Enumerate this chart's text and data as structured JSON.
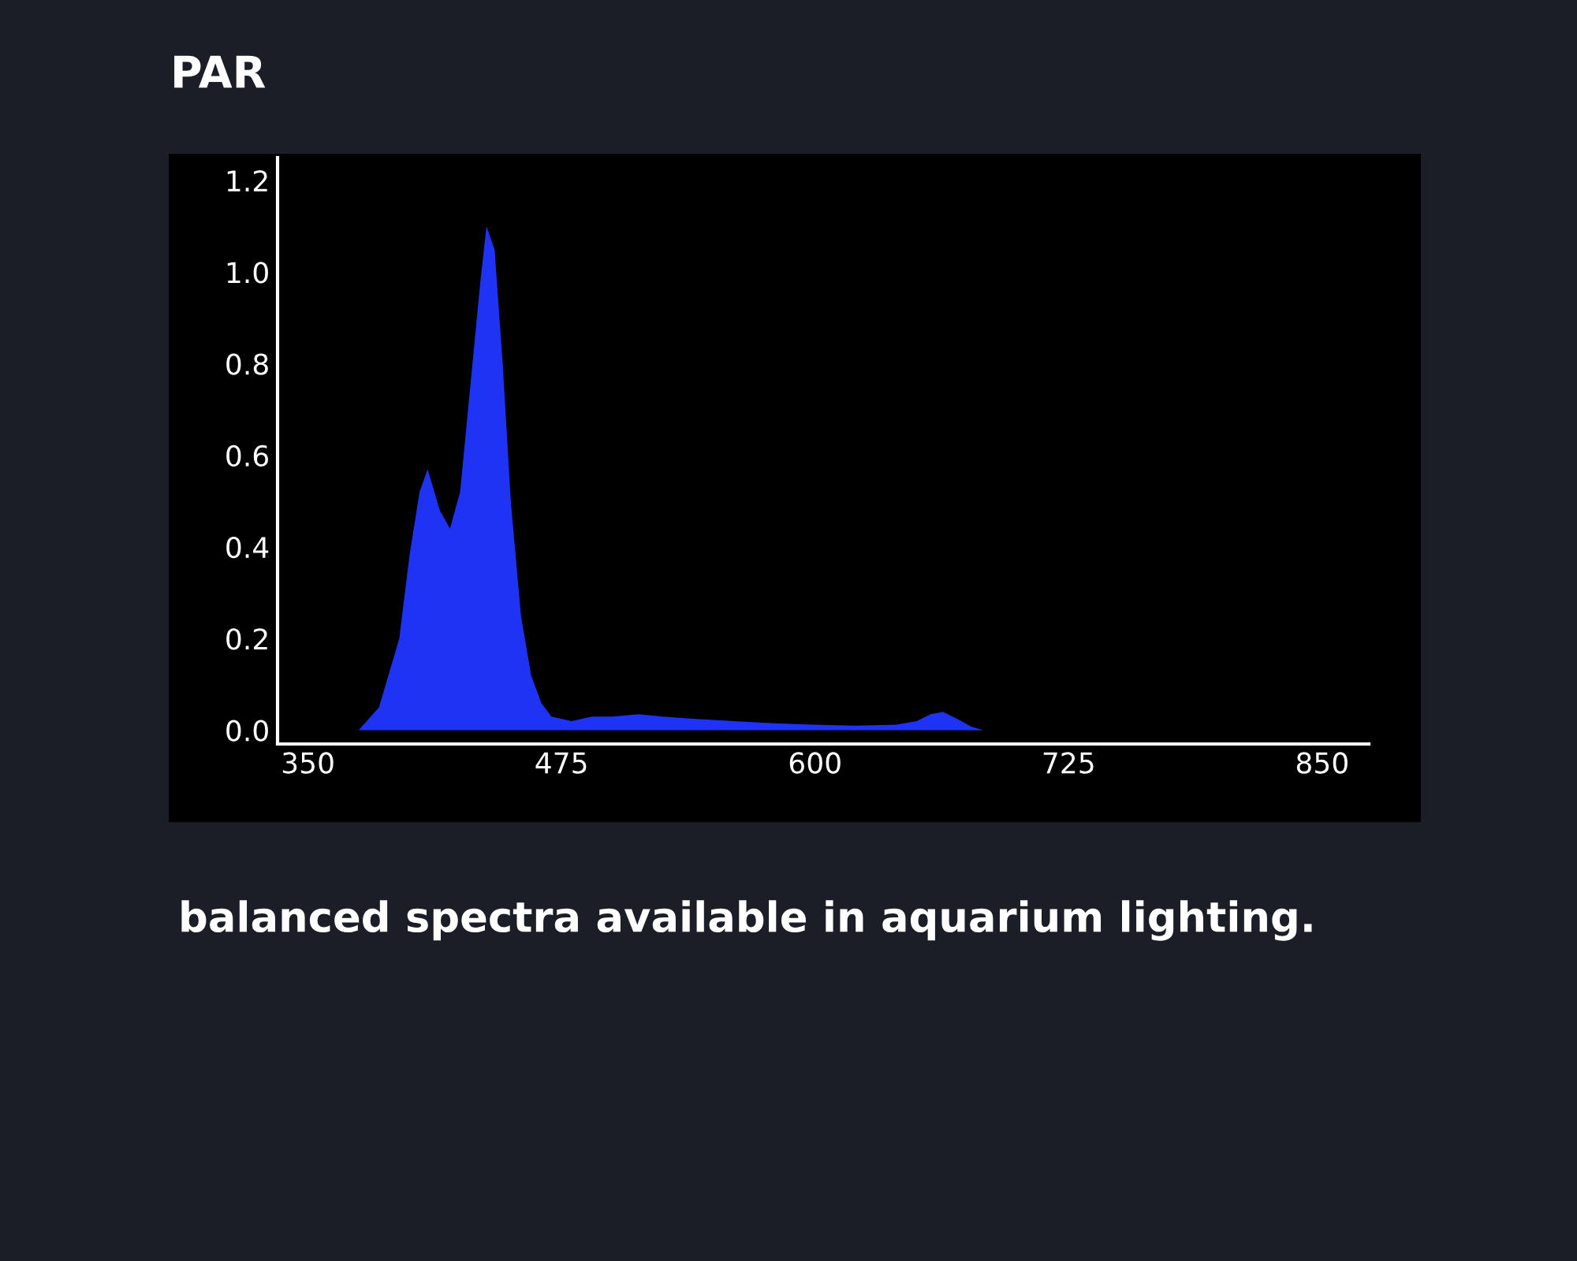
{
  "chart_data": {
    "type": "area",
    "title": "PAR",
    "x": [
      375,
      385,
      395,
      400,
      405,
      409,
      415,
      420,
      425,
      430,
      435,
      438,
      442,
      446,
      450,
      455,
      460,
      465,
      470,
      480,
      490,
      500,
      513,
      525,
      540,
      560,
      580,
      600,
      620,
      640,
      650,
      657,
      663,
      670,
      677,
      683
    ],
    "values": [
      0.0,
      0.05,
      0.2,
      0.38,
      0.52,
      0.57,
      0.48,
      0.44,
      0.52,
      0.75,
      0.98,
      1.1,
      1.05,
      0.8,
      0.5,
      0.25,
      0.12,
      0.06,
      0.03,
      0.02,
      0.03,
      0.03,
      0.035,
      0.03,
      0.025,
      0.02,
      0.015,
      0.012,
      0.01,
      0.012,
      0.02,
      0.035,
      0.04,
      0.025,
      0.008,
      0.0
    ],
    "color": "#1f33f5",
    "xlim": [
      335,
      873
    ],
    "ylim": [
      -0.03,
      1.25
    ],
    "xticks": [
      350,
      475,
      600,
      725,
      850
    ],
    "yticks": [
      {
        "value": 0,
        "label": "0.0"
      },
      0.2,
      0.4,
      0.6,
      0.8,
      {
        "value": 1,
        "label": "1.0"
      },
      1.2
    ],
    "grid": false,
    "legend": false,
    "annotations": [
      "balanced spectra available in aquarium lighting."
    ]
  }
}
